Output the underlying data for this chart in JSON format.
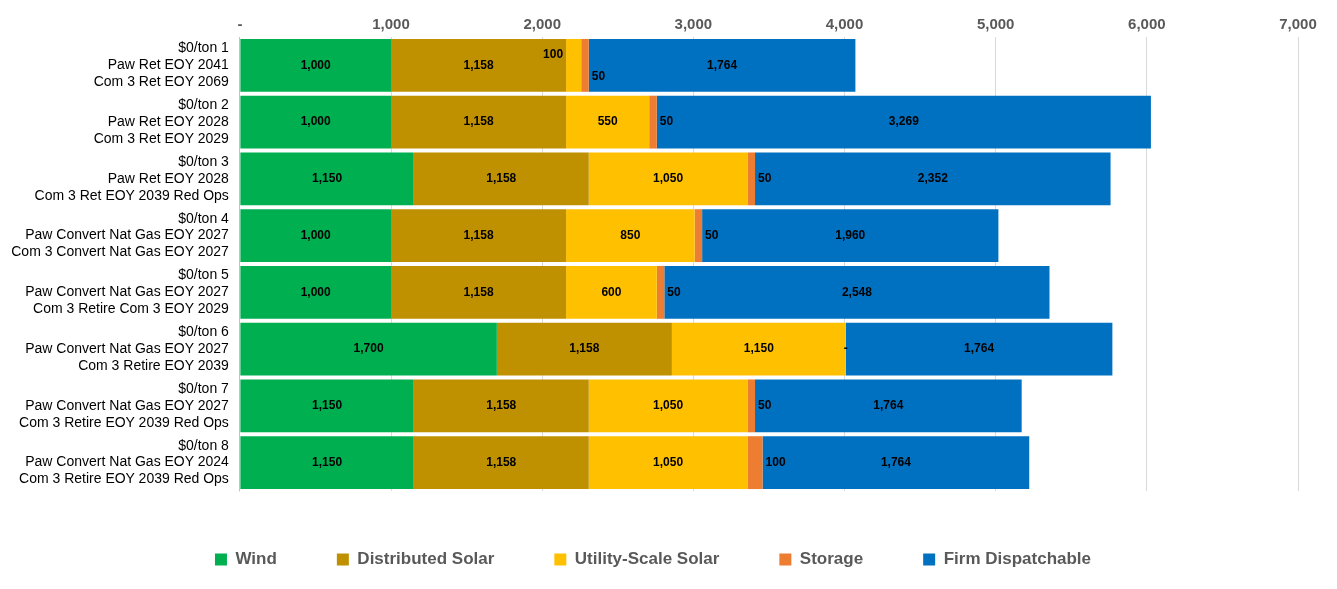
{
  "chart_data": {
    "type": "bar",
    "orientation": "horizontal",
    "stacked": true,
    "categories": [
      "$0/ton 1\nPaw Ret EOY 2041\nCom 3 Ret EOY 2069",
      "$0/ton 2\nPaw Ret EOY 2028\nCom 3 Ret EOY 2029",
      "$0/ton 3\nPaw Ret EOY 2028\nCom 3 Ret EOY 2039 Red Ops",
      "$0/ton 4\nPaw Convert Nat Gas EOY 2027\nCom 3 Convert Nat Gas EOY 2027",
      "$0/ton 5\nPaw Convert Nat Gas EOY 2027\nCom 3 Retire Com 3 EOY 2029",
      "$0/ton 6\nPaw Convert Nat Gas EOY 2027\nCom 3 Retire EOY 2039",
      "$0/ton 7\nPaw Convert Nat Gas EOY 2027\nCom 3 Retire EOY 2039 Red Ops",
      "$0/ton 8\nPaw Convert Nat Gas EOY 2024\nCom 3 Retire EOY 2039 Red Ops"
    ],
    "series": [
      {
        "name": "Wind",
        "color": "#00b050",
        "values": [
          1000,
          1000,
          1150,
          1000,
          1000,
          1700,
          1150,
          1150
        ],
        "value_labels": [
          "1,000",
          "1,000",
          "1,150",
          "1,000",
          "1,000",
          "1,700",
          "1,150",
          "1,150"
        ]
      },
      {
        "name": "Distributed Solar",
        "color": "#bf9000",
        "values": [
          1158,
          1158,
          1158,
          1158,
          1158,
          1158,
          1158,
          1158
        ],
        "value_labels": [
          "1,158",
          "1,158",
          "1,158",
          "1,158",
          "1,158",
          "1,158",
          "1,158",
          "1,158"
        ]
      },
      {
        "name": "Utility-Scale Solar",
        "color": "#ffc000",
        "values": [
          100,
          550,
          1050,
          850,
          600,
          1150,
          1050,
          1050
        ],
        "value_labels": [
          "100",
          "550",
          "1,050",
          "850",
          "600",
          "1,150",
          "1,050",
          "1,050"
        ]
      },
      {
        "name": "Storage",
        "color": "#ed7d31",
        "values": [
          50,
          50,
          50,
          50,
          50,
          0,
          50,
          100
        ],
        "value_labels": [
          "50",
          "50",
          "50",
          "50",
          "50",
          null,
          "50",
          "100"
        ]
      },
      {
        "name": "Firm Dispatchable",
        "color": "#0070c0",
        "values": [
          1764,
          3269,
          2352,
          1960,
          2548,
          1764,
          1764,
          1764
        ],
        "value_labels": [
          "1,764",
          "3,269",
          "2,352",
          "1,960",
          "2,548",
          "1,764",
          "1,764",
          "1,764"
        ]
      }
    ],
    "xlim": [
      0,
      7000
    ],
    "xticks": [
      {
        "value": 0,
        "label": "-"
      },
      {
        "value": 1000,
        "label": "1,000"
      },
      {
        "value": 2000,
        "label": "2,000"
      },
      {
        "value": 3000,
        "label": "3,000"
      },
      {
        "value": 4000,
        "label": "4,000"
      },
      {
        "value": 5000,
        "label": "5,000"
      },
      {
        "value": 6000,
        "label": "6,000"
      },
      {
        "value": 7000,
        "label": "7,000"
      }
    ],
    "annotations": [
      {
        "text": "-",
        "x": 4008,
        "y": "$0/ton 6\nPaw Convert Nat Gas EOY 2027\nCom 3 Retire EOY 2039"
      }
    ],
    "grid": "x",
    "legend": "bottom"
  }
}
